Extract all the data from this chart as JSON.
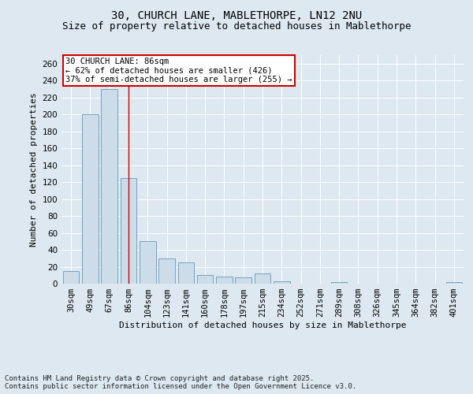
{
  "title_line1": "30, CHURCH LANE, MABLETHORPE, LN12 2NU",
  "title_line2": "Size of property relative to detached houses in Mablethorpe",
  "xlabel": "Distribution of detached houses by size in Mablethorpe",
  "ylabel": "Number of detached properties",
  "categories": [
    "30sqm",
    "49sqm",
    "67sqm",
    "86sqm",
    "104sqm",
    "123sqm",
    "141sqm",
    "160sqm",
    "178sqm",
    "197sqm",
    "215sqm",
    "234sqm",
    "252sqm",
    "271sqm",
    "289sqm",
    "308sqm",
    "326sqm",
    "345sqm",
    "364sqm",
    "382sqm",
    "401sqm"
  ],
  "values": [
    15,
    200,
    230,
    125,
    50,
    30,
    25,
    10,
    8,
    7,
    12,
    3,
    0,
    0,
    2,
    0,
    0,
    0,
    0,
    0,
    2
  ],
  "bar_color": "#ccdce8",
  "bar_edge_color": "#6699bb",
  "highlight_index": 3,
  "highlight_line_color": "#cc0000",
  "annotation_text": "30 CHURCH LANE: 86sqm\n← 62% of detached houses are smaller (426)\n37% of semi-detached houses are larger (255) →",
  "annotation_box_color": "#ffffff",
  "annotation_box_edge": "#cc0000",
  "ylim": [
    0,
    270
  ],
  "yticks": [
    0,
    20,
    40,
    60,
    80,
    100,
    120,
    140,
    160,
    180,
    200,
    220,
    240,
    260
  ],
  "background_color": "#dde8f0",
  "plot_background": "#dde8f0",
  "footer_text": "Contains HM Land Registry data © Crown copyright and database right 2025.\nContains public sector information licensed under the Open Government Licence v3.0.",
  "title_fontsize": 10,
  "subtitle_fontsize": 9,
  "label_fontsize": 8,
  "tick_fontsize": 7.5,
  "annotation_fontsize": 7.5
}
